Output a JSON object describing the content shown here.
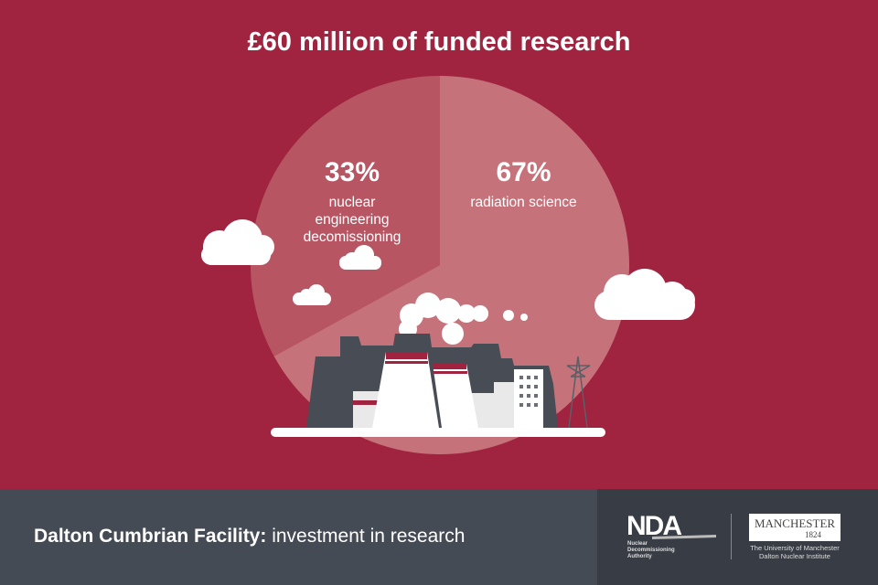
{
  "title": "£60 million of funded research",
  "chart_data": {
    "type": "pie",
    "title": "£60 million of funded research",
    "slices": [
      {
        "label": "radiation science",
        "value": 67,
        "display": "67%",
        "color": "#c6727b"
      },
      {
        "label": "nuclear engineering decomissioning",
        "value": 33,
        "display": "33%",
        "color": "#b85563"
      }
    ]
  },
  "footer": {
    "title_bold": "Dalton Cumbrian Facility:",
    "title_rest": " investment in research"
  },
  "logos": {
    "nda": {
      "mark": "NDA",
      "line1": "Nuclear",
      "line2": "Decommissioning",
      "line3": "Authority"
    },
    "manchester": {
      "name": "MANCHESTER",
      "year": "1824",
      "line1": "The University of Manchester",
      "line2": "Dalton Nuclear Institute"
    }
  },
  "colors": {
    "background": "#a02440",
    "footer": "#454b54",
    "dark": "#474c55"
  }
}
